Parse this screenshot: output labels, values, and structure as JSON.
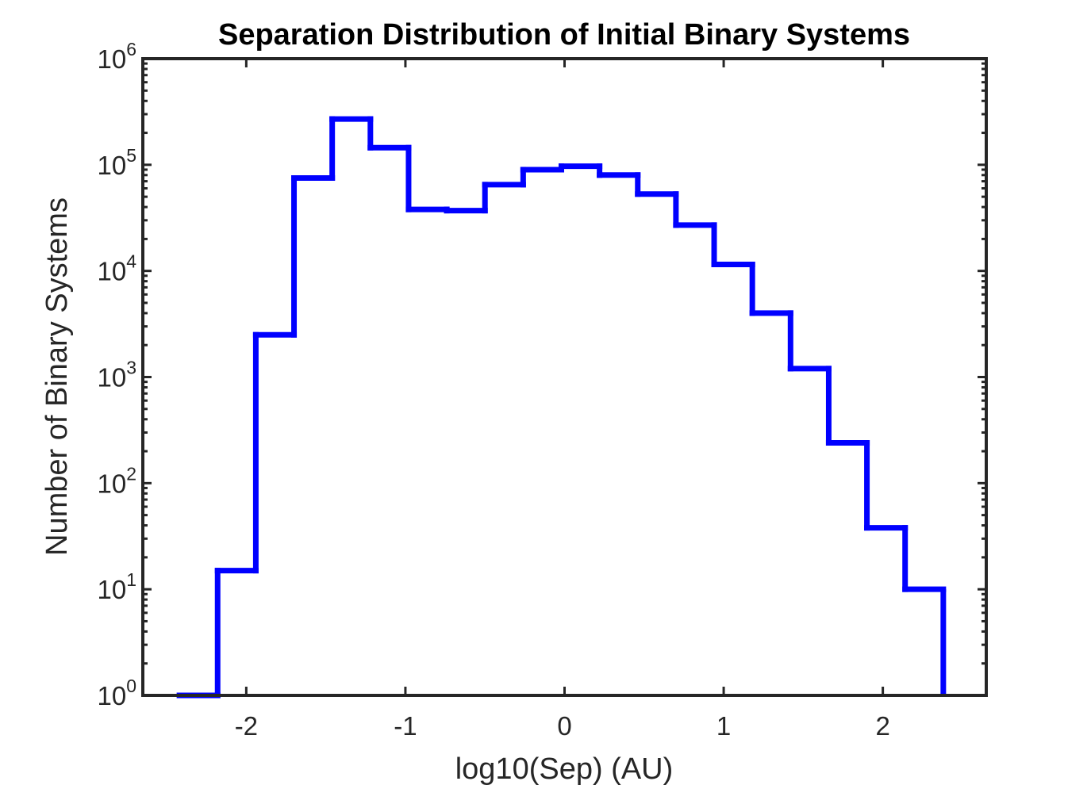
{
  "chart_data": {
    "type": "histogram-step",
    "title": "Separation Distribution of Initial Binary Systems",
    "xlabel": "log10(Sep) (AU)",
    "ylabel": "Number of Binary Systems",
    "xlim": [
      -2.65,
      2.65
    ],
    "ylim": [
      1,
      1000000
    ],
    "yscale": "log",
    "xticks": [
      -2,
      -1,
      0,
      1,
      2
    ],
    "xtick_labels": [
      "-2",
      "-1",
      "0",
      "1",
      "2"
    ],
    "yticks": [
      1,
      10,
      100,
      1000,
      10000,
      100000,
      1000000
    ],
    "ytick_bases": [
      "10",
      "10",
      "10",
      "10",
      "10",
      "10",
      "10"
    ],
    "ytick_exponents": [
      "0",
      "1",
      "2",
      "3",
      "4",
      "5",
      "6"
    ],
    "grid": false,
    "color": "#0000ff",
    "bin_edges": [
      -2.42,
      -2.18,
      -1.94,
      -1.7,
      -1.46,
      -1.22,
      -0.98,
      -0.74,
      -0.5,
      -0.26,
      -0.02,
      0.22,
      0.46,
      0.7,
      0.94,
      1.18,
      1.42,
      1.66,
      1.9,
      2.14,
      2.38
    ],
    "counts": [
      1,
      15,
      2500,
      75000,
      270000,
      145000,
      38000,
      37000,
      65000,
      90000,
      97000,
      80000,
      53000,
      27000,
      11500,
      4000,
      1200,
      240,
      38,
      10
    ]
  }
}
